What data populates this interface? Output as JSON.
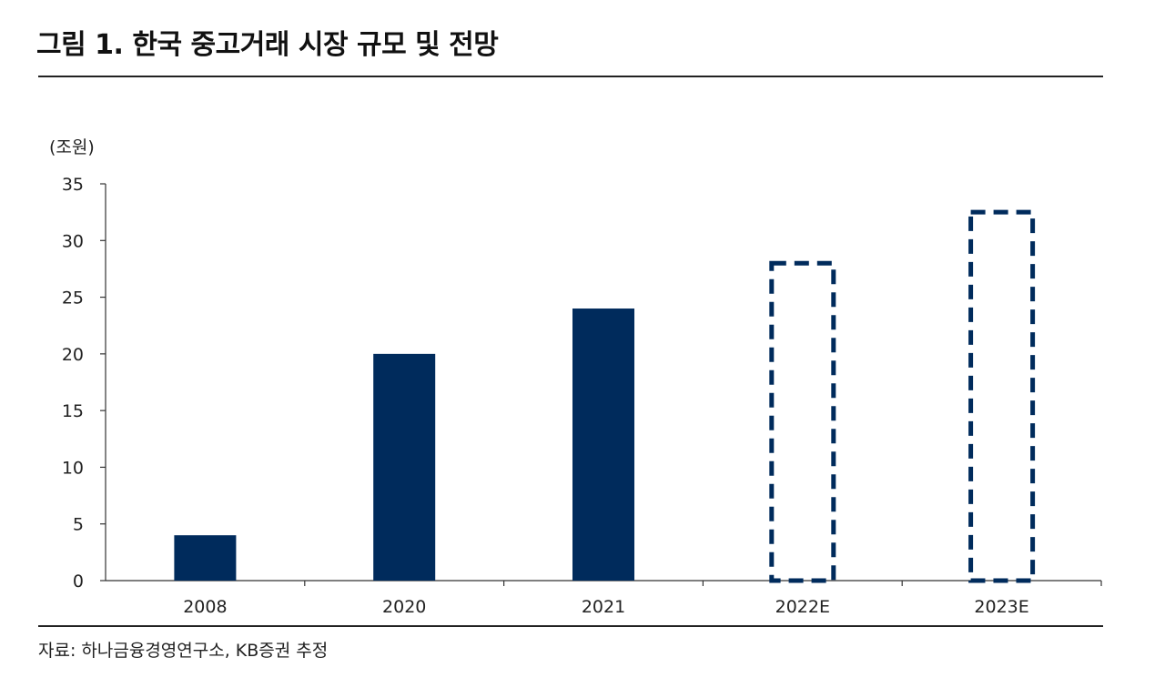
{
  "title": "그림 1. 한국 중고거래 시장 규모 및 전망",
  "source": "자료: 하나금융경영연구소, KB증권 추정",
  "colors": {
    "bar": "#002b5c",
    "axis": "#333333"
  },
  "chart_data": {
    "type": "bar",
    "categories": [
      "2008",
      "2020",
      "2021",
      "2022E",
      "2023E"
    ],
    "values": [
      4,
      20,
      24,
      28,
      32.5
    ],
    "estimated": [
      false,
      false,
      false,
      true,
      true
    ],
    "ylabel": "(조원)",
    "ylim": [
      0,
      35
    ],
    "yticks": [
      0,
      5,
      10,
      15,
      20,
      25,
      30,
      35
    ],
    "grid": false,
    "legend": "none"
  }
}
